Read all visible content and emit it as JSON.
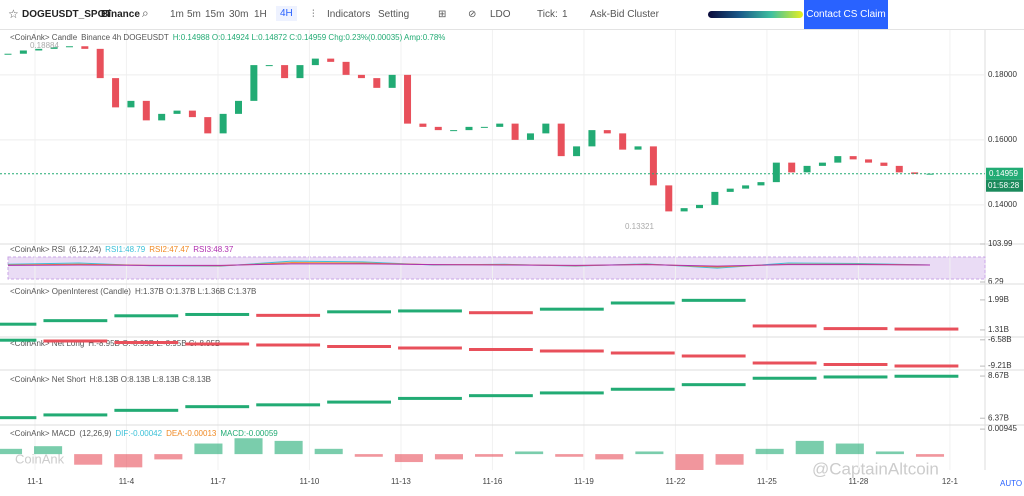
{
  "toolbar": {
    "symbol": "DOGEUSDT_SPOT",
    "exchange": "Binance",
    "intervals": [
      "1m",
      "5m",
      "15m",
      "30m",
      "1H",
      "4H"
    ],
    "indicators": "Indicators",
    "setting": "Setting",
    "coin": "LDO",
    "tick_label": "Tick:",
    "tick_value": "1",
    "cluster": "Ask-Bid Cluster",
    "contact": "Contact CS Claim"
  },
  "watermarks": [
    "CoinAnk",
    "@CaptainAltcoin"
  ],
  "auto": "AUTO",
  "chart_data": [
    {
      "type": "candlestick",
      "title": "<CoinAnk> Candle",
      "legend": [
        {
          "text": "Binance 4h DOGEUSDT",
          "color": "#555"
        },
        {
          "text": "H:0.14988 O:0.14924 L:0.14872 C:0.14959 Chg:0.23%(0.00035) Amp:0.78%",
          "color": "#22ab74"
        }
      ],
      "values": [
        0.1865,
        0.1875,
        0.188,
        0.1885,
        0.1888,
        0.188,
        0.179,
        0.17,
        0.172,
        0.166,
        0.168,
        0.169,
        0.167,
        0.162,
        0.168,
        0.172,
        0.183,
        0.183,
        0.179,
        0.183,
        0.185,
        0.184,
        0.18,
        0.179,
        0.176,
        0.18,
        0.165,
        0.164,
        0.163,
        0.163,
        0.164,
        0.164,
        0.165,
        0.16,
        0.162,
        0.165,
        0.155,
        0.158,
        0.163,
        0.162,
        0.157,
        0.158,
        0.146,
        0.138,
        0.139,
        0.14,
        0.144,
        0.145,
        0.146,
        0.147,
        0.153,
        0.15,
        0.152,
        0.153,
        0.155,
        0.154,
        0.153,
        0.152,
        0.15,
        0.1495,
        0.1496
      ],
      "ylim": [
        0.1292,
        0.1938
      ],
      "yticks": [
        {
          "value": 0.14,
          "label": "0.14000"
        },
        {
          "value": 0.16,
          "label": "0.16000"
        },
        {
          "value": 0.18,
          "label": "0.18000"
        }
      ],
      "xlim": [
        0.1,
        32.15
      ],
      "xticks": [
        {
          "value": 1,
          "label": "11-1"
        },
        {
          "value": 4,
          "label": "11-4"
        },
        {
          "value": 7,
          "label": "11-7"
        },
        {
          "value": 10,
          "label": "11-10"
        },
        {
          "value": 13,
          "label": "11-13"
        },
        {
          "value": 16,
          "label": "11-16"
        },
        {
          "value": 19,
          "label": "11-19"
        },
        {
          "value": 22,
          "label": "11-22"
        },
        {
          "value": 25,
          "label": "11-25"
        },
        {
          "value": 28,
          "label": "11-28"
        },
        {
          "value": 31,
          "label": "12-1"
        }
      ],
      "high": 0.18884,
      "low": 0.13321,
      "last_price": 0.14959,
      "countdown": "01:58:28",
      "up_color": "#22ab74",
      "down_color": "#e8505b"
    },
    {
      "type": "line",
      "title": "<CoinAnk>  RSI",
      "legend": [
        {
          "text": "(6,12,24)",
          "color": "#555"
        },
        {
          "text": "RSI1:48.79",
          "color": "#3cc1d8"
        },
        {
          "text": "RSI2:47.47",
          "color": "#f08a24"
        },
        {
          "text": "RSI3:48.37",
          "color": "#b02fb0"
        }
      ],
      "series": [
        {
          "color": "#3cc1d8",
          "values": [
            52,
            55,
            48,
            47,
            60,
            58,
            50,
            52,
            47,
            53,
            42,
            55,
            54,
            50
          ]
        },
        {
          "color": "#f08a24",
          "values": [
            50,
            52,
            49,
            48,
            56,
            55,
            51,
            51,
            48,
            52,
            45,
            52,
            52,
            50
          ]
        },
        {
          "color": "#b02fb0",
          "values": [
            49,
            50,
            49,
            49,
            53,
            53,
            51,
            50,
            49,
            51,
            47,
            51,
            51,
            50
          ]
        }
      ],
      "ylim": [
        6.29,
        103.99
      ],
      "yticks": [
        6.29,
        103.99
      ]
    },
    {
      "type": "steps",
      "title": "<CoinAnk>  OpenInterest (Candle)",
      "legend": [
        {
          "text": "H:1.37B O:1.37B L:1.36B C:1.37B",
          "color": "#555"
        }
      ],
      "values": [
        1.44,
        1.52,
        1.63,
        1.66,
        1.64,
        1.72,
        1.74,
        1.7,
        1.78,
        1.92,
        1.98,
        1.4,
        1.34,
        1.33
      ],
      "ylim": [
        1.15,
        2.35
      ],
      "yticks": [
        {
          "value": 1.31,
          "label": "1.31B"
        },
        {
          "value": 1.99,
          "label": "1.99B"
        }
      ]
    },
    {
      "type": "steps",
      "title": "<CoinAnk>  Net Long",
      "legend": [
        {
          "text": "H:-8.95B O:-8.95B L:-8.95B C:-8.95B",
          "color": "#555"
        }
      ],
      "values": [
        -6.62,
        -6.7,
        -6.85,
        -7,
        -7.1,
        -7.25,
        -7.4,
        -7.55,
        -7.7,
        -7.9,
        -8.2,
        -8.9,
        -9.05,
        -9.2
      ],
      "ylim": [
        -9.6,
        -6.3
      ],
      "yticks": [
        {
          "value": -9.21,
          "label": "-9.21B"
        },
        {
          "value": -6.58,
          "label": "-6.58B"
        }
      ]
    },
    {
      "type": "steps",
      "title": "<CoinAnk>  Net Short",
      "legend": [
        {
          "text": "H:8.13B O:8.13B L:8.13B C:8.13B",
          "color": "#555"
        }
      ],
      "values": [
        6.4,
        6.55,
        6.8,
        7,
        7.1,
        7.25,
        7.45,
        7.6,
        7.75,
        7.95,
        8.2,
        8.55,
        8.62,
        8.66
      ],
      "ylim": [
        6,
        9
      ],
      "yticks": [
        {
          "value": 6.37,
          "label": "6.37B"
        },
        {
          "value": 8.67,
          "label": "8.67B"
        }
      ]
    },
    {
      "type": "bar",
      "title": "<CoinAnk>  MACD",
      "legend": [
        {
          "text": "(12,26,9)",
          "color": "#555"
        },
        {
          "text": "DIF:-0.00042",
          "color": "#3cc1d8"
        },
        {
          "text": "DEA:-0.00013",
          "color": "#f08a24"
        },
        {
          "text": "MACD:-0.00059",
          "color": "#22ab74"
        }
      ],
      "values": [
        0.002,
        0.003,
        -0.004,
        -0.005,
        -0.002,
        0.004,
        0.006,
        0.005,
        0.002,
        -0.001,
        -0.003,
        -0.002,
        -0.001,
        0.001,
        -0.001,
        -0.002,
        0.001,
        -0.006,
        -0.004,
        0.002,
        0.005,
        0.004,
        0.001,
        -0.001
      ],
      "ylim": [
        -0.006,
        0.011
      ],
      "yticks": [
        0.00945
      ],
      "up_color": "#22ab74",
      "down_color": "#e8505b"
    }
  ]
}
